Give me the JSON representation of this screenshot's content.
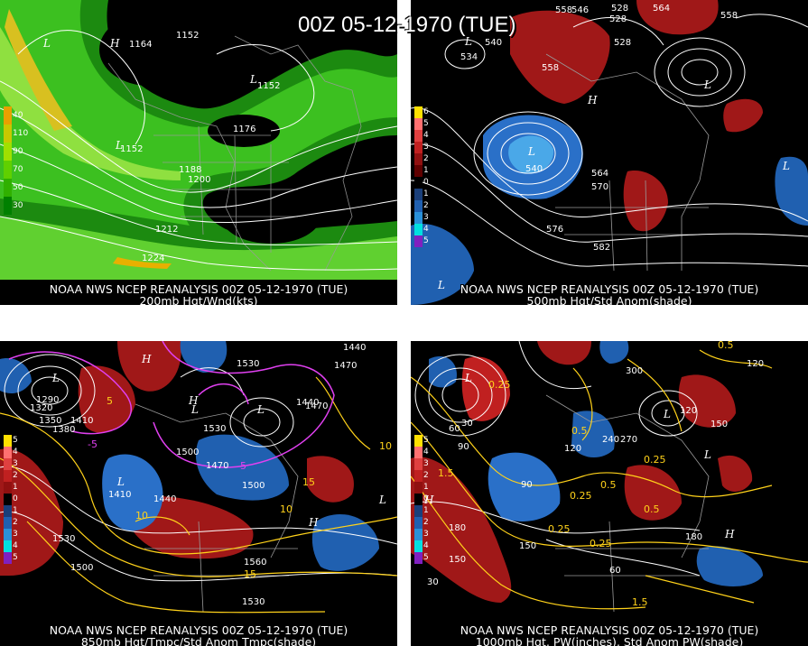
{
  "title": "00Z 05-12-1970 (TUE)",
  "panels": [
    {
      "caption_line1": "NOAA NWS NCEP REANALYSIS 00Z 05-12-1970 (TUE)",
      "caption_line2": "200mb Hgt/Wnd(kts)",
      "legend": [
        {
          "label": "40",
          "color": "#e8a000"
        },
        {
          "label": "110",
          "color": "#c8c800"
        },
        {
          "label": "90",
          "color": "#a0e000"
        },
        {
          "label": "70",
          "color": "#60d000"
        },
        {
          "label": "50",
          "color": "#30b000"
        },
        {
          "label": "30",
          "color": "#008000"
        }
      ],
      "contour_labels": [
        "1164",
        "1152",
        "1152",
        "1152",
        "1176",
        "1188",
        "1200",
        "1212",
        "1224"
      ],
      "centers": [
        "L",
        "H",
        "L",
        "L"
      ]
    },
    {
      "caption_line1": "NOAA NWS NCEP REANALYSIS 00Z 05-12-1970 (TUE)",
      "caption_line2": "500mb Hgt/Std Anom(shade)",
      "legend": [
        {
          "label": "6",
          "color": "#ffe000"
        },
        {
          "label": "5",
          "color": "#ff7070"
        },
        {
          "label": "4",
          "color": "#e04040"
        },
        {
          "label": "3",
          "color": "#c02020"
        },
        {
          "label": "2",
          "color": "#901010"
        },
        {
          "label": "1",
          "color": "#600000"
        },
        {
          "label": "0",
          "color": "#000000"
        },
        {
          "label": "1",
          "color": "#1a3f7a"
        },
        {
          "label": "2",
          "color": "#2060b0"
        },
        {
          "label": "3",
          "color": "#2a90d8"
        },
        {
          "label": "4",
          "color": "#00e0e0"
        },
        {
          "label": "5",
          "color": "#8020c0"
        }
      ],
      "contour_labels": [
        "528",
        "558",
        "546",
        "528",
        "564",
        "558",
        "534",
        "540",
        "558",
        "528",
        "540",
        "564",
        "570",
        "576",
        "582"
      ],
      "centers": [
        "L",
        "L",
        "H",
        "L",
        "L",
        "L"
      ]
    },
    {
      "caption_line1": "NOAA NWS NCEP REANALYSIS 00Z 05-12-1970 (TUE)",
      "caption_line2": "850mb Hgt/Tmpc/Std Anom Tmpc(shade)",
      "legend": [
        {
          "label": "5",
          "color": "#ffe000"
        },
        {
          "label": "4",
          "color": "#ff7070"
        },
        {
          "label": "3",
          "color": "#e04040"
        },
        {
          "label": "2",
          "color": "#c02020"
        },
        {
          "label": "1",
          "color": "#901010"
        },
        {
          "label": "0",
          "color": "#000000"
        },
        {
          "label": "1",
          "color": "#1a3f7a"
        },
        {
          "label": "2",
          "color": "#2060b0"
        },
        {
          "label": "3",
          "color": "#2a90d8"
        },
        {
          "label": "4",
          "color": "#00e0e0"
        },
        {
          "label": "5",
          "color": "#8020c0"
        }
      ],
      "contour_labels": [
        "1530",
        "1440",
        "1470",
        "1290",
        "1320",
        "1350",
        "1380",
        "1410",
        "1440",
        "1470",
        "1530",
        "1500",
        "1470",
        "1410",
        "1500",
        "1440",
        "1530",
        "1500",
        "1530",
        "1560"
      ],
      "temp_labels": [
        "-5",
        "-5",
        "5",
        "10",
        "10",
        "15",
        "15",
        "10"
      ],
      "centers": [
        "L",
        "H",
        "L",
        "L",
        "H",
        "L",
        "L",
        "H"
      ]
    },
    {
      "caption_line1": "NOAA NWS NCEP REANALYSIS 00Z 05-12-1970 (TUE)",
      "caption_line2": "1000mb Hgt, PW(inches), Std Anom PW(shade)",
      "legend": [
        {
          "label": "5",
          "color": "#ffe000"
        },
        {
          "label": "4",
          "color": "#ff7070"
        },
        {
          "label": "3",
          "color": "#e04040"
        },
        {
          "label": "2",
          "color": "#c02020"
        },
        {
          "label": "1",
          "color": "#901010"
        },
        {
          "label": "0",
          "color": "#000000"
        },
        {
          "label": "1",
          "color": "#1a3f7a"
        },
        {
          "label": "2",
          "color": "#2060b0"
        },
        {
          "label": "3",
          "color": "#2a90d8"
        },
        {
          "label": "4",
          "color": "#00e0e0"
        },
        {
          "label": "5",
          "color": "#8020c0"
        }
      ],
      "contour_labels": [
        "0.5",
        "120",
        "0.25",
        "300",
        "30",
        "60",
        "90",
        "120",
        "240",
        "270",
        "120",
        "150",
        "90",
        "150",
        "180",
        "180",
        "150",
        "60",
        "30"
      ],
      "pw_labels": [
        "0.5",
        "0.25",
        "0.5",
        "0.25",
        "0.25",
        "0.5",
        "0.25",
        "1.5",
        "1.5"
      ],
      "centers": [
        "L",
        "L",
        "L",
        "H",
        "H"
      ]
    }
  ]
}
